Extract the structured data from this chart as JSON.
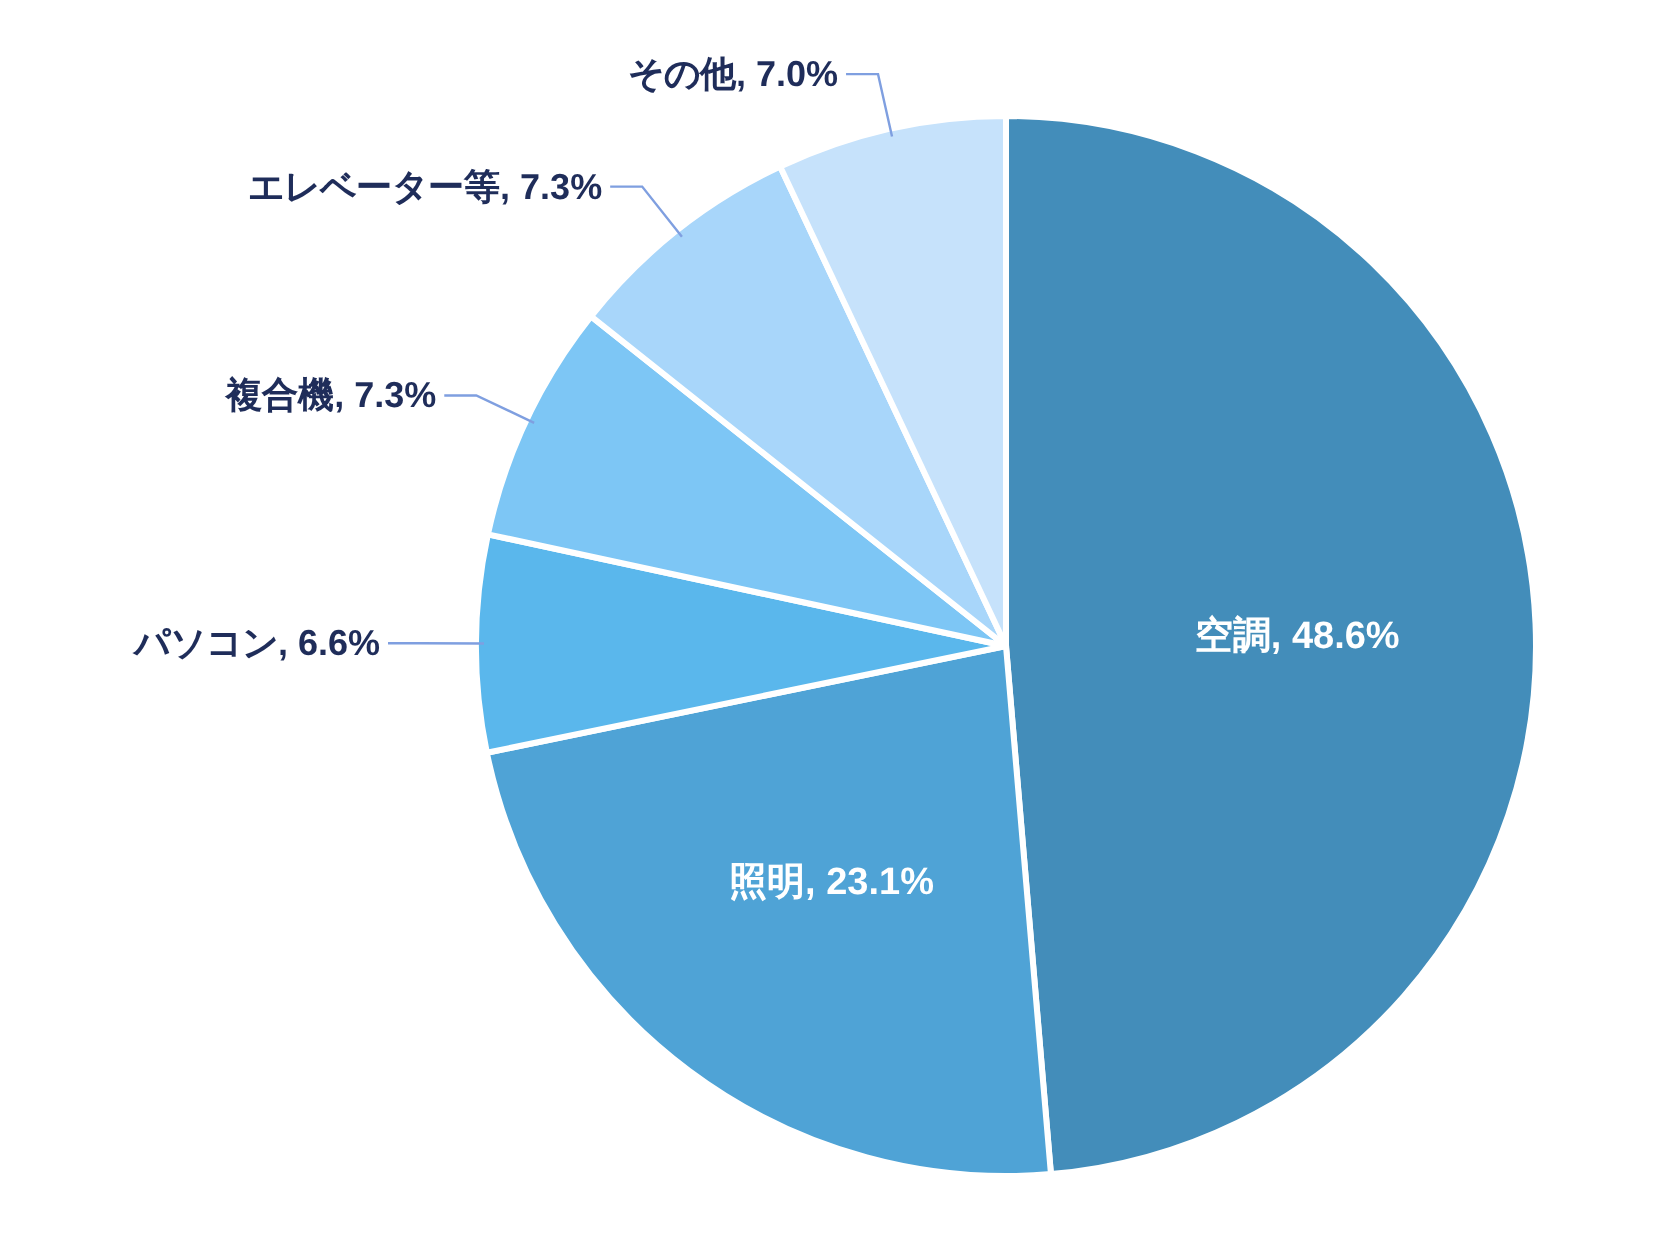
{
  "chart_data": {
    "type": "pie",
    "categories": [
      "空調",
      "照明",
      "パソコン",
      "複合機",
      "エレベーター等",
      "その他"
    ],
    "values": [
      48.6,
      23.1,
      6.6,
      7.3,
      7.3,
      7.0
    ],
    "colors": [
      "#438dba",
      "#4fa3d6",
      "#5ab7ec",
      "#7dc6f5",
      "#a8d6fa",
      "#c6e2fb"
    ],
    "value_labels": [
      "48.6%",
      "23.1%",
      "6.6%",
      "7.3%",
      "7.3%",
      "7.0%"
    ]
  }
}
